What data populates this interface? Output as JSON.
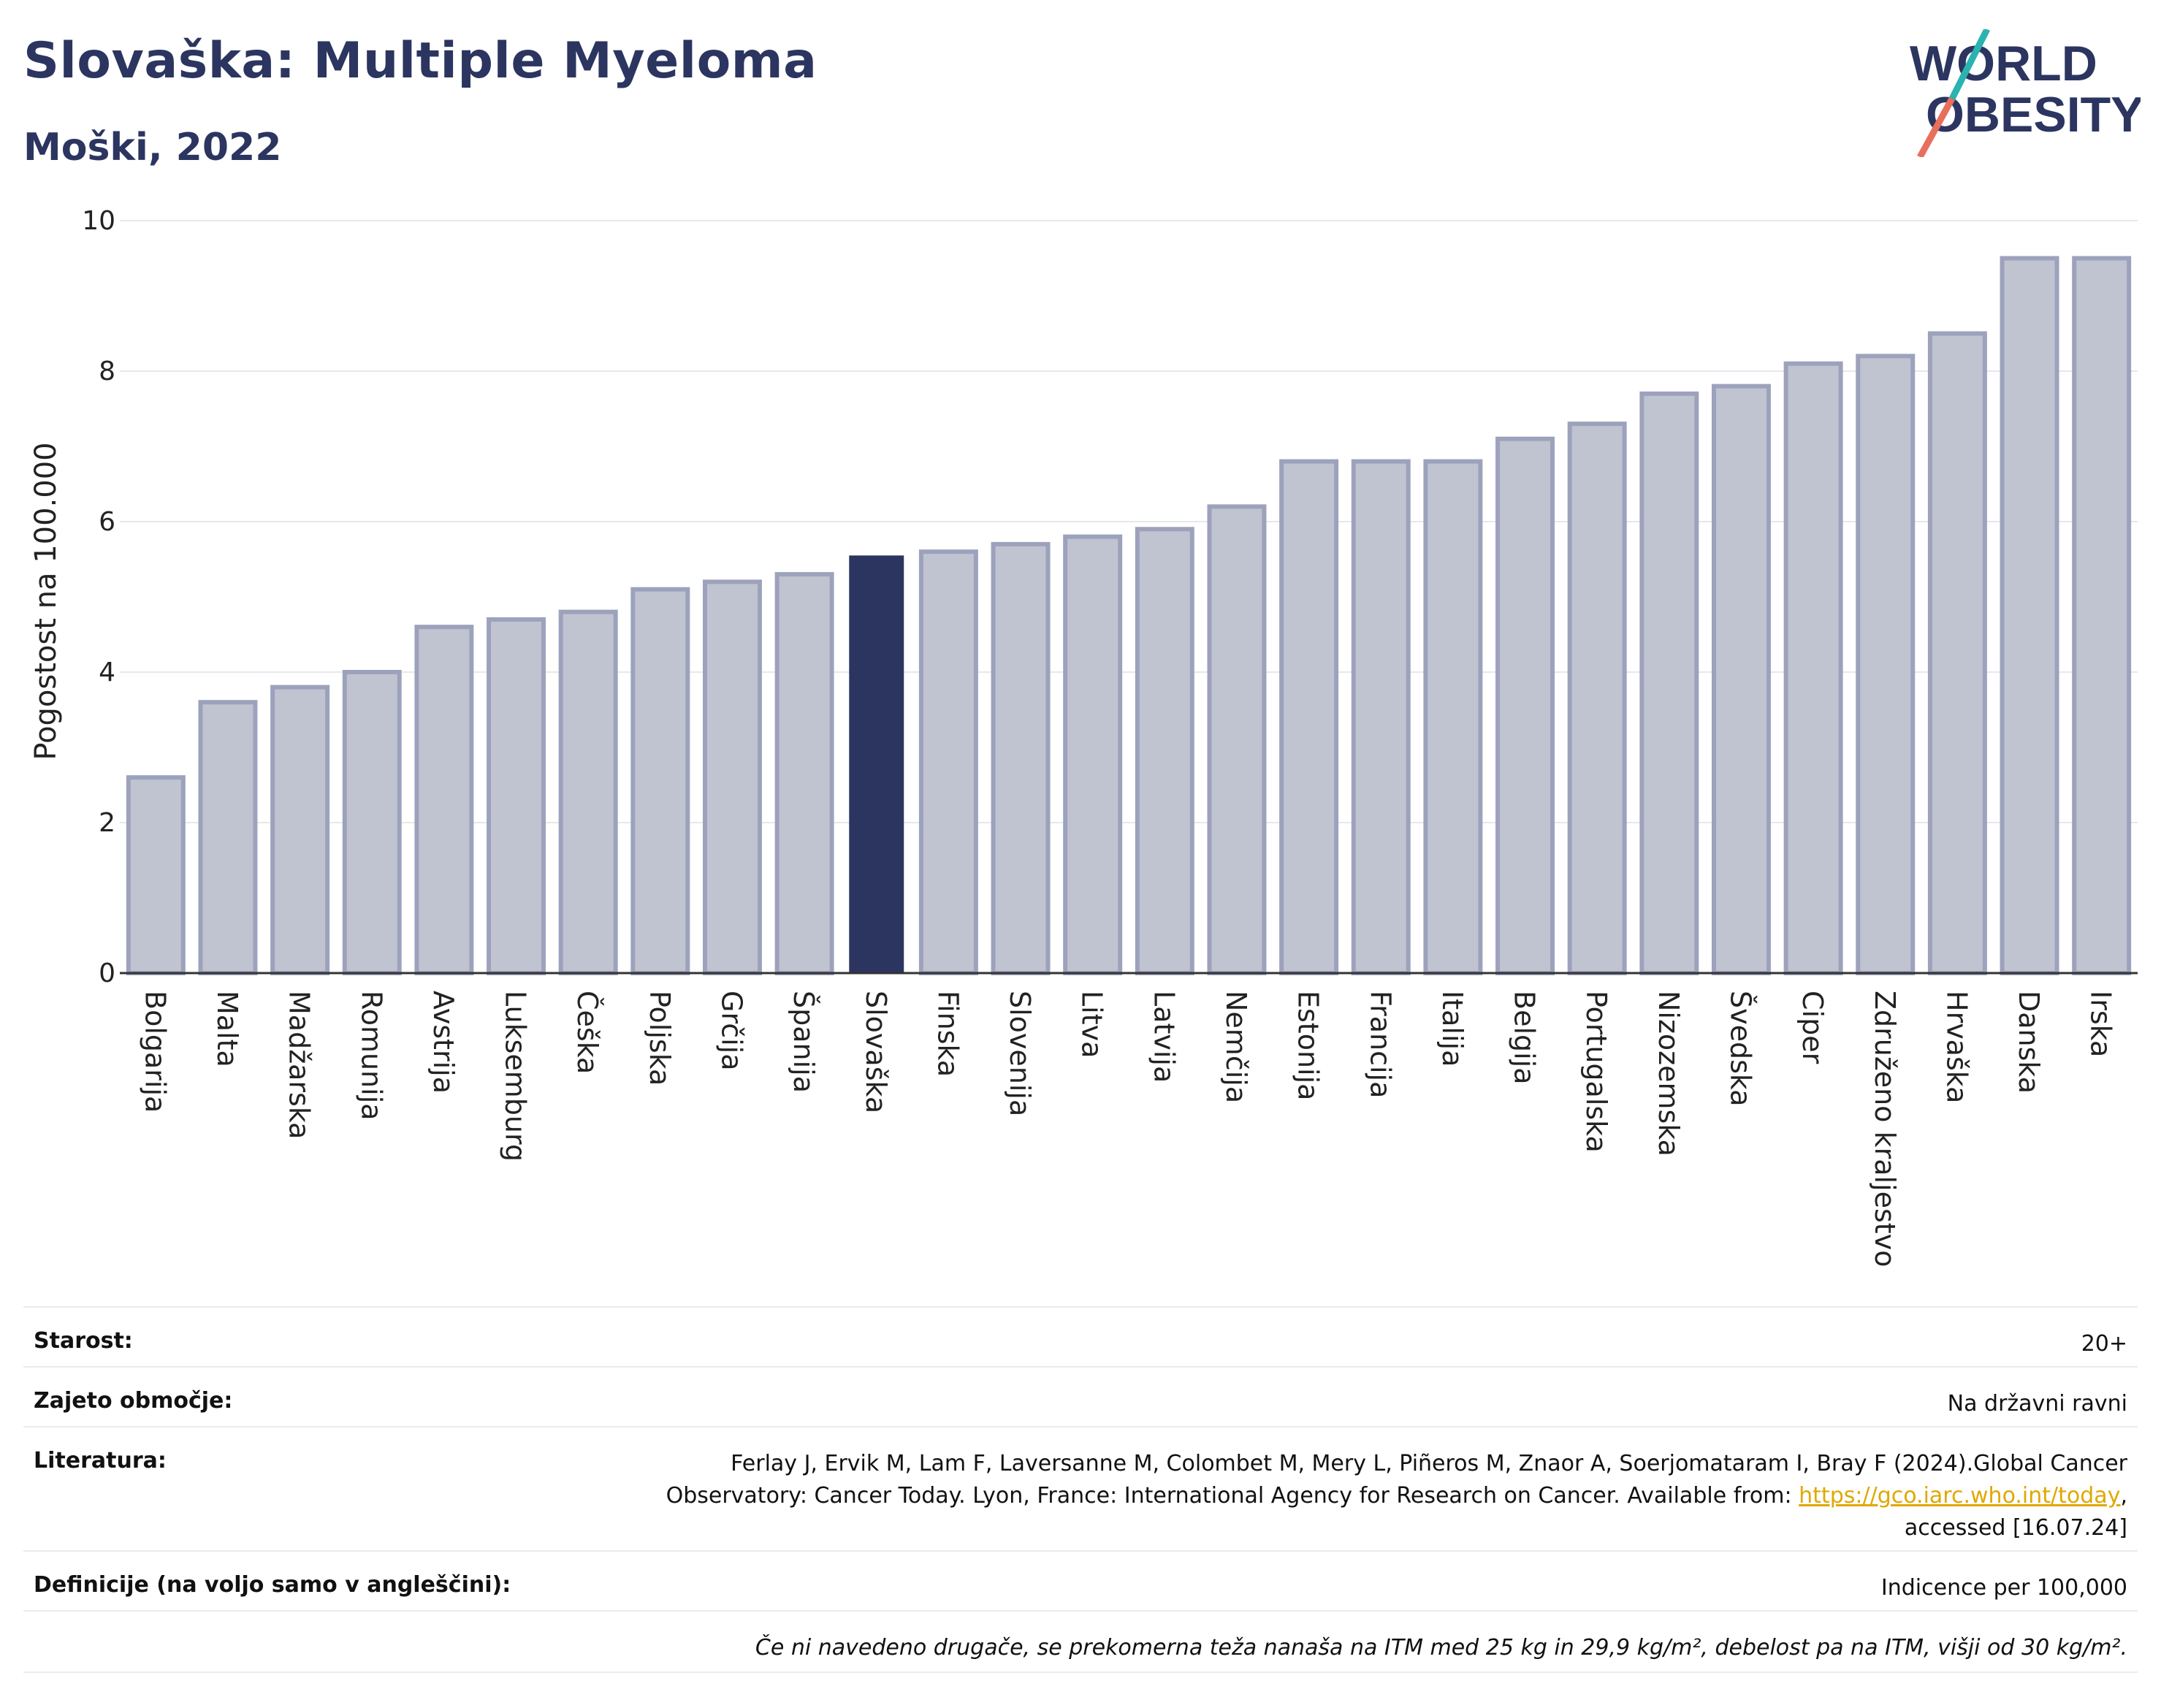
{
  "header": {
    "title": "Slovaška: Multiple Myeloma",
    "subtitle": "Moški, 2022"
  },
  "logo": {
    "line1": "WORLD",
    "line2": "OBESITY",
    "accent_colors": [
      "#2ab3b0",
      "#e86f5c"
    ]
  },
  "colors": {
    "bar_default": "#c0c3d0",
    "bar_border": "#9da2bc",
    "bar_highlight": "#2b3560",
    "text_dark": "#2b3560"
  },
  "chart_data": {
    "type": "bar",
    "ylabel": "Pogostost na 100.000",
    "ylim": [
      0,
      10
    ],
    "yticks": [
      0,
      2,
      4,
      6,
      8,
      10
    ],
    "grid": true,
    "highlight": "Slovaška",
    "categories": [
      "Bolgarija",
      "Malta",
      "Madžarska",
      "Romunija",
      "Avstrija",
      "Luksemburg",
      "Češka",
      "Poljska",
      "Grčija",
      "Španija",
      "Slovaška",
      "Finska",
      "Slovenija",
      "Litva",
      "Latvija",
      "Nemčija",
      "Estonija",
      "Francija",
      "Italija",
      "Belgija",
      "Portugalska",
      "Nizozemska",
      "Švedska",
      "Ciper",
      "Združeno kraljestvo",
      "Hrvaška",
      "Danska",
      "Irska"
    ],
    "values": [
      2.6,
      3.6,
      3.8,
      4.0,
      4.6,
      4.7,
      4.8,
      5.1,
      5.2,
      5.3,
      5.55,
      5.6,
      5.7,
      5.8,
      5.9,
      6.2,
      6.8,
      6.8,
      6.8,
      7.1,
      7.3,
      7.7,
      7.8,
      8.1,
      8.2,
      8.5,
      9.5,
      9.5
    ]
  },
  "meta": {
    "age_label": "Starost:",
    "age_value": "20+",
    "coverage_label": "Zajeto območje:",
    "coverage_value": "Na državni ravni",
    "reference_label": "Literatura:",
    "reference_line1": "Ferlay J, Ervik M, Lam F, Laversanne M, Colombet M, Mery L, Piñeros M, Znaor A, Soerjomataram I, Bray F (2024).Global Cancer",
    "reference_line2_pre": "Observatory: Cancer Today. Lyon, France: International Agency for Research on Cancer. Available from: ",
    "reference_link": "https://gco.iarc.who.int/today",
    "reference_line2_post": ",",
    "reference_line3": "accessed [16.07.24]",
    "definitions_label": "Definicije (na voljo samo v angleščini):",
    "definitions_value": "Indicence per 100,000",
    "footnote": "Če ni navedeno drugače, se prekomerna teža nanaša na ITM med 25 kg in 29,9 kg/m², debelost pa na ITM, višji od 30 kg/m²."
  }
}
